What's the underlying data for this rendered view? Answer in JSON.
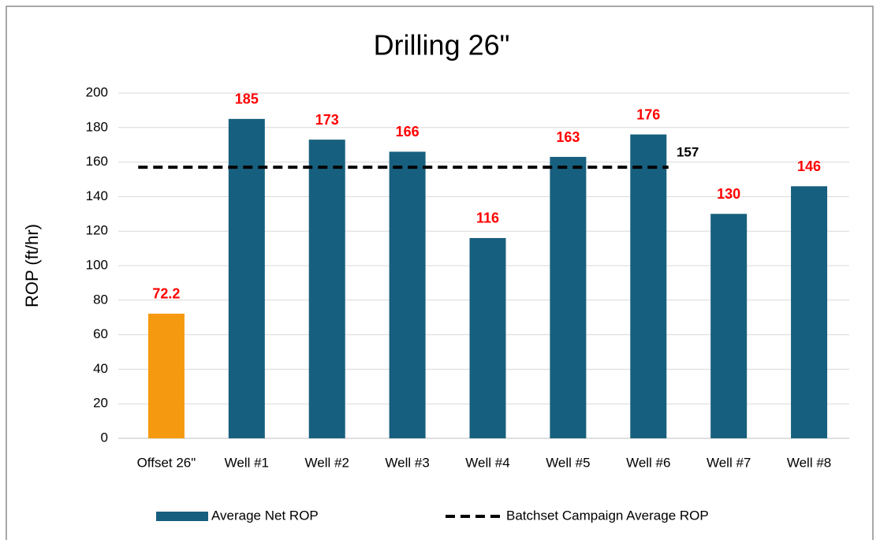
{
  "chart_data": {
    "type": "bar",
    "title": "Drilling 26\"",
    "y_label": "ROP (ft/hr)",
    "categories": [
      "Offset 26\"",
      "Well #1",
      "Well #2",
      "Well #3",
      "Well #4",
      "Well #5",
      "Well #6",
      "Well #7",
      "Well #8"
    ],
    "series": [
      {
        "name": "Average Net ROP",
        "color": "#175f7e",
        "values": [
          72.2,
          185,
          173,
          166,
          116,
          163,
          176,
          130,
          146
        ],
        "colors": [
          "#f59a10",
          "#175f7e",
          "#175f7e",
          "#175f7e",
          "#175f7e",
          "#175f7e",
          "#175f7e",
          "#175f7e",
          "#175f7e"
        ]
      },
      {
        "name": "Batchset Campaign Average ROP",
        "type": "line",
        "color": "#000000",
        "value": 157
      }
    ],
    "value_label_color": "#ff0000",
    "ylim": [
      0,
      200
    ],
    "yticks": [
      0,
      20,
      40,
      60,
      80,
      100,
      120,
      140,
      160,
      180,
      200
    ],
    "grid": true,
    "legend": "bottom"
  }
}
